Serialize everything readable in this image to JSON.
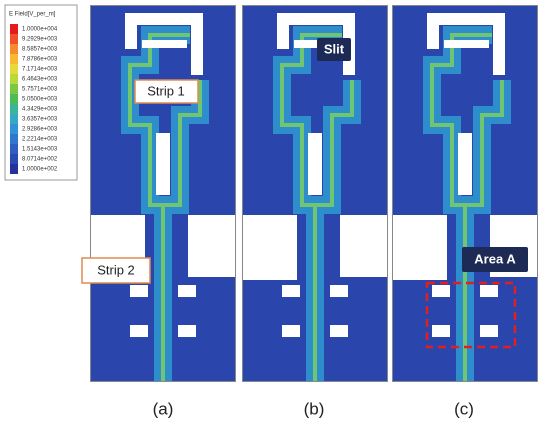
{
  "legend": {
    "title": "E Field[V_per_m]",
    "labels": [
      "1.0000e+004",
      "9.2929e+003",
      "8.5857e+003",
      "7.8786e+003",
      "7.1714e+003",
      "6.4643e+003",
      "5.7571e+003",
      "5.0500e+003",
      "4.3429e+003",
      "3.6357e+003",
      "2.9286e+003",
      "2.2214e+003",
      "1.5143e+003",
      "8.0714e+002",
      "1.0000e+002"
    ]
  },
  "panels": [
    {
      "caption": "(a)",
      "annotations": [
        "Strip 1",
        "Strip 2"
      ]
    },
    {
      "caption": "(b)",
      "annotations": [
        "Slit"
      ]
    },
    {
      "caption": "(c)",
      "annotations": [
        "Area A"
      ]
    }
  ]
}
